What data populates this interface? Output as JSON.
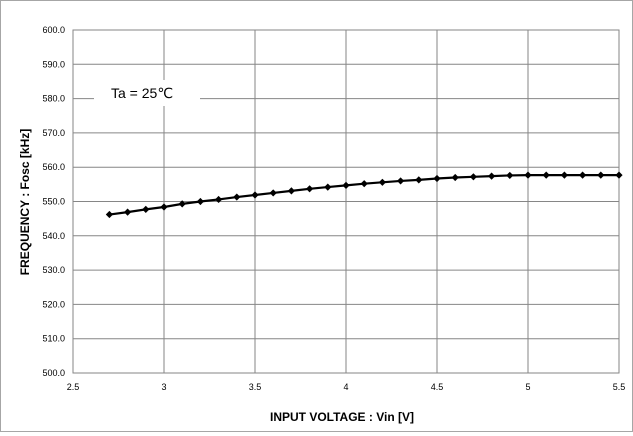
{
  "chart_data": {
    "type": "line",
    "title": "",
    "xlabel": "INPUT VOLTAGE : Vin [V]",
    "ylabel": "FREQUENCY : Fosc [kHz]",
    "xlim": [
      2.5,
      5.5
    ],
    "ylim": [
      500.0,
      600.0
    ],
    "grid": true,
    "legend": "none",
    "annotation": "Ta = 25℃",
    "x_ticks": [
      "2.5",
      "3",
      "3.5",
      "4",
      "4.5",
      "5",
      "5.5"
    ],
    "y_ticks": [
      "500.0",
      "510.0",
      "520.0",
      "530.0",
      "540.0",
      "550.0",
      "560.0",
      "570.0",
      "580.0",
      "590.0",
      "600.0"
    ],
    "series": [
      {
        "color": "#000000",
        "marker": "diamond",
        "x": [
          2.7,
          2.8,
          2.9,
          3.0,
          3.1,
          3.2,
          3.3,
          3.4,
          3.5,
          3.6,
          3.7,
          3.8,
          3.9,
          4.0,
          4.1,
          4.2,
          4.3,
          4.4,
          4.5,
          4.6,
          4.7,
          4.8,
          4.9,
          5.0,
          5.1,
          5.2,
          5.3,
          5.4,
          5.5
        ],
        "y": [
          546.2,
          546.9,
          547.7,
          548.4,
          549.3,
          550.0,
          550.6,
          551.3,
          551.9,
          552.5,
          553.1,
          553.7,
          554.2,
          554.7,
          555.2,
          555.6,
          556.0,
          556.3,
          556.7,
          557.0,
          557.2,
          557.4,
          557.6,
          557.7,
          557.7,
          557.7,
          557.7,
          557.7,
          557.7
        ]
      }
    ]
  }
}
